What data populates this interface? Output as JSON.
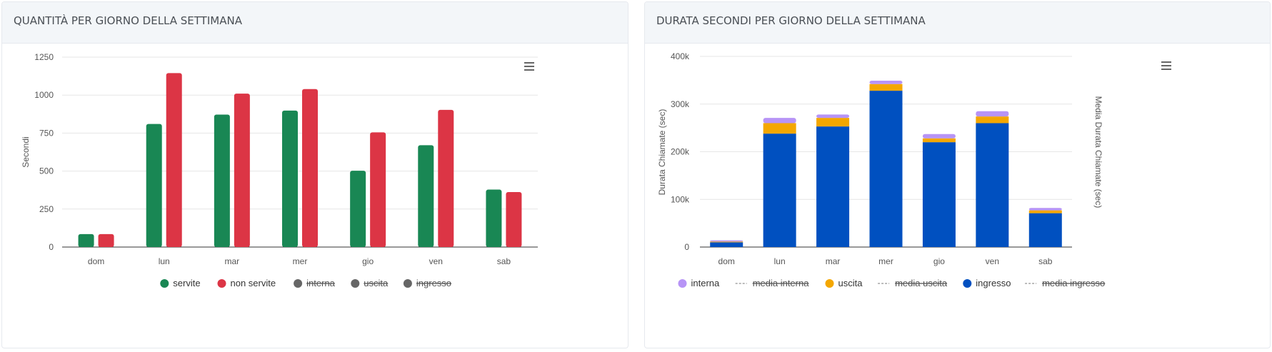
{
  "left_panel": {
    "title": "QUANTITÀ PER GIORNO DELLA SETTIMANA"
  },
  "right_panel": {
    "title": "DURATA SECONDI PER GIORNO DELLA SETTIMANA"
  },
  "colors": {
    "servite": "#198754",
    "non_servite": "#dc3545",
    "hidden_series": "#666666",
    "interna": "#b794f6",
    "uscita": "#f4a700",
    "ingresso": "#0050c0"
  },
  "icons": {
    "menu": "hamburger-menu-icon"
  },
  "chart_data": [
    {
      "type": "bar",
      "categories": [
        "dom",
        "lun",
        "mar",
        "mer",
        "gio",
        "ven",
        "sab"
      ],
      "ylabel": "Secondi",
      "ylim": [
        0,
        1250
      ],
      "yticks": [
        "0",
        "250",
        "500",
        "750",
        "1000",
        "1250"
      ],
      "grid": true,
      "legend_position": "bottom",
      "series": [
        {
          "name": "servite",
          "values": [
            85,
            810,
            872,
            898,
            502,
            670,
            378
          ],
          "visible": true
        },
        {
          "name": "non servite",
          "values": [
            85,
            1145,
            1010,
            1040,
            755,
            903,
            362
          ],
          "visible": true
        },
        {
          "name": "interna",
          "visible": false
        },
        {
          "name": "uscita",
          "visible": false
        },
        {
          "name": "ingresso",
          "visible": false
        }
      ]
    },
    {
      "type": "bar",
      "stacked": true,
      "categories": [
        "dom",
        "lun",
        "mar",
        "mer",
        "gio",
        "ven",
        "sab"
      ],
      "ylabel": "Durata Chiamate (sec)",
      "ylabel_right": "Media Durata Chiamate (sec)",
      "ylim": [
        0,
        400000
      ],
      "yticks": [
        "0",
        "100k",
        "200k",
        "300k",
        "400k"
      ],
      "grid": true,
      "legend_position": "bottom",
      "series": [
        {
          "name": "ingresso",
          "values": [
            10000,
            238000,
            253000,
            328000,
            220000,
            260000,
            71000
          ],
          "visible": true
        },
        {
          "name": "uscita",
          "values": [
            1500,
            22000,
            18000,
            14000,
            8000,
            14000,
            6000
          ],
          "visible": true
        },
        {
          "name": "interna",
          "values": [
            2500,
            11000,
            7000,
            7000,
            9000,
            11000,
            5000
          ],
          "visible": true
        }
      ],
      "legend": [
        {
          "name": "interna",
          "kind": "dot",
          "visible": true
        },
        {
          "name": "media interna",
          "kind": "line",
          "visible": false
        },
        {
          "name": "uscita",
          "kind": "dot",
          "visible": true
        },
        {
          "name": "media uscita",
          "kind": "line",
          "visible": false
        },
        {
          "name": "ingresso",
          "kind": "dot",
          "visible": true
        },
        {
          "name": "media ingresso",
          "kind": "line",
          "visible": false
        }
      ]
    }
  ]
}
